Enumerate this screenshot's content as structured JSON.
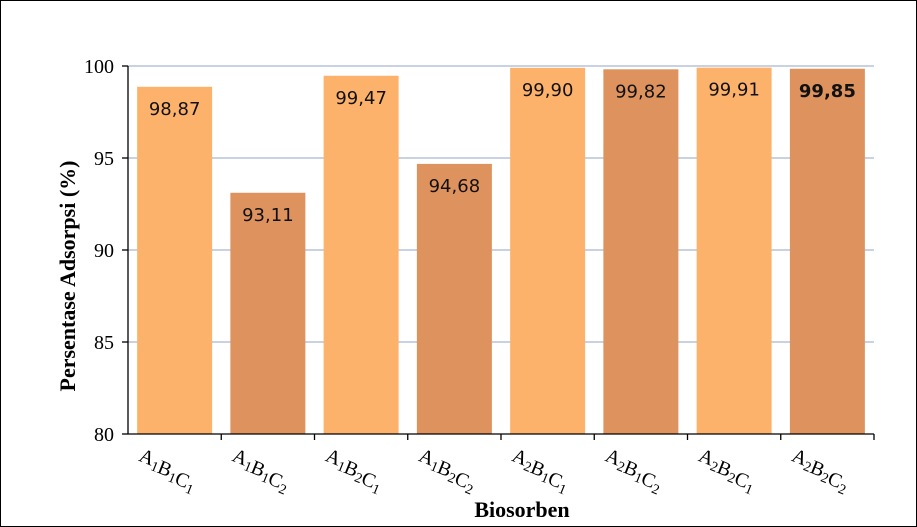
{
  "chart_data": {
    "type": "bar",
    "categories": [
      {
        "parts": [
          [
            "A",
            "1"
          ],
          [
            "B",
            "1"
          ],
          [
            "C",
            "1"
          ]
        ]
      },
      {
        "parts": [
          [
            "A",
            "1"
          ],
          [
            "B",
            "1"
          ],
          [
            "C",
            "2"
          ]
        ]
      },
      {
        "parts": [
          [
            "A",
            "1"
          ],
          [
            "B",
            "2"
          ],
          [
            "C",
            "1"
          ]
        ]
      },
      {
        "parts": [
          [
            "A",
            "1"
          ],
          [
            "B",
            "2"
          ],
          [
            "C",
            "2"
          ]
        ]
      },
      {
        "parts": [
          [
            "A",
            "2"
          ],
          [
            "B",
            "1"
          ],
          [
            "C",
            "1"
          ]
        ]
      },
      {
        "parts": [
          [
            "A",
            "2"
          ],
          [
            "B",
            "1"
          ],
          [
            "C",
            "2"
          ]
        ]
      },
      {
        "parts": [
          [
            "A",
            "2"
          ],
          [
            "B",
            "2"
          ],
          [
            "C",
            "1"
          ]
        ]
      },
      {
        "parts": [
          [
            "A",
            "2"
          ],
          [
            "B",
            "2"
          ],
          [
            "C",
            "2"
          ]
        ]
      }
    ],
    "values": [
      98.87,
      93.11,
      99.47,
      94.68,
      99.9,
      99.82,
      99.91,
      99.85
    ],
    "value_labels": [
      "98,87",
      "93,11",
      "99,47",
      "94,68",
      "99,90",
      "99,82",
      "99,91",
      "99,85"
    ],
    "bold_labels": [
      false,
      false,
      false,
      false,
      false,
      false,
      false,
      true
    ],
    "bar_colors": [
      "#FCB26A",
      "#DE925D",
      "#FCB26A",
      "#DE925D",
      "#FCB26A",
      "#DE925D",
      "#FCB26A",
      "#DE925D"
    ],
    "xlabel": "Biosorben",
    "ylabel": "Persentase Adsorpsi (%)",
    "ylim": [
      80,
      100
    ],
    "yticks": [
      80,
      85,
      90,
      95,
      100
    ],
    "grid": true,
    "gridline_color": "#A9B8D0"
  }
}
